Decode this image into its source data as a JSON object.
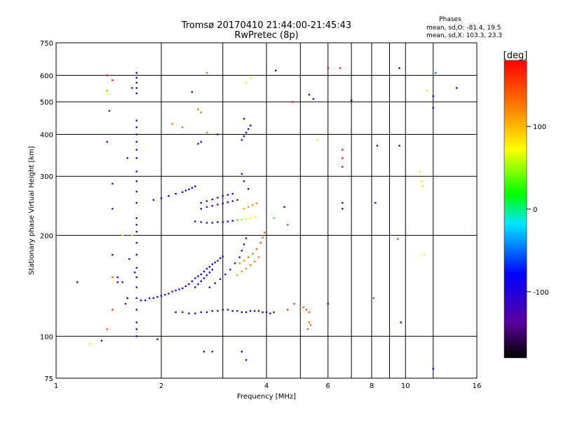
{
  "chart_data": {
    "type": "scatter",
    "title": "Tromsø 20170410 21:44:00-21:45:43",
    "subtitle": "RwPretec (8p)",
    "xlabel": "Frequency [MHz]",
    "ylabel": "Stationary phase Virtual Height [km]",
    "xscale": "log",
    "yscale": "log",
    "xlim": [
      1,
      16
    ],
    "ylim": [
      75,
      750
    ],
    "x_ticks": [
      1,
      2,
      4,
      6,
      8,
      10,
      16
    ],
    "y_ticks": [
      75,
      100,
      200,
      300,
      400,
      500,
      600,
      750
    ],
    "grid_x": [
      1,
      2,
      3,
      4,
      5,
      6,
      7,
      8,
      9,
      10,
      12
    ],
    "grid_y": [
      100,
      200,
      300,
      400,
      500,
      600
    ],
    "grid": true,
    "phases_box": {
      "title": "Phases",
      "line1": "mean, sd,O: -81.4, 19.5",
      "line2": "mean, sd,X: 103.3, 23.3"
    },
    "colorbar": {
      "label": "[deg]",
      "range": [
        -180,
        180
      ],
      "ticks": [
        100,
        0,
        -100
      ],
      "colormap": "rainbow"
    },
    "series": [
      {
        "color_label": "phase",
        "points": [
          [
            1.15,
            145,
            -110
          ],
          [
            1.25,
            95,
            60
          ],
          [
            1.35,
            97,
            -150
          ],
          [
            1.4,
            105,
            150
          ],
          [
            1.4,
            380,
            -130
          ],
          [
            1.4,
            600,
            170
          ],
          [
            1.4,
            540,
            30
          ],
          [
            1.42,
            470,
            -120
          ],
          [
            1.45,
            175,
            -150
          ],
          [
            1.45,
            150,
            140
          ],
          [
            1.45,
            120,
            160
          ],
          [
            1.45,
            285,
            -110
          ],
          [
            1.45,
            240,
            -120
          ],
          [
            1.5,
            150,
            -110
          ],
          [
            1.5,
            145,
            -115
          ],
          [
            1.55,
            145,
            -120
          ],
          [
            1.58,
            125,
            -110
          ],
          [
            1.6,
            130,
            -110
          ],
          [
            1.62,
            170,
            -110
          ],
          [
            1.65,
            200,
            60
          ],
          [
            1.68,
            155,
            -115
          ],
          [
            1.7,
            610,
            -110
          ],
          [
            1.7,
            590,
            -115
          ],
          [
            1.7,
            570,
            -120
          ],
          [
            1.7,
            550,
            -110
          ],
          [
            1.7,
            530,
            -115
          ],
          [
            1.7,
            440,
            -115
          ],
          [
            1.7,
            420,
            -110
          ],
          [
            1.7,
            400,
            -115
          ],
          [
            1.7,
            380,
            -110
          ],
          [
            1.7,
            360,
            -115
          ],
          [
            1.7,
            340,
            -110
          ],
          [
            1.7,
            310,
            -115
          ],
          [
            1.7,
            290,
            -110
          ],
          [
            1.7,
            270,
            -115
          ],
          [
            1.7,
            250,
            -110
          ],
          [
            1.7,
            225,
            -115
          ],
          [
            1.7,
            215,
            -110
          ],
          [
            1.7,
            205,
            -110
          ],
          [
            1.7,
            190,
            -115
          ],
          [
            1.7,
            175,
            -110
          ],
          [
            1.7,
            160,
            -115
          ],
          [
            1.7,
            150,
            -110
          ],
          [
            1.7,
            140,
            -115
          ],
          [
            1.7,
            130,
            -110
          ],
          [
            1.7,
            120,
            -115
          ],
          [
            1.7,
            110,
            -110
          ],
          [
            1.7,
            105,
            -115
          ],
          [
            1.7,
            100,
            -110
          ],
          [
            1.75,
            128,
            -110
          ],
          [
            1.8,
            128,
            -112
          ],
          [
            1.85,
            130,
            -110
          ],
          [
            1.9,
            130,
            -105
          ],
          [
            1.95,
            131,
            -108
          ],
          [
            2.0,
            132,
            -106
          ],
          [
            2.05,
            133,
            -104
          ],
          [
            2.1,
            134,
            -102
          ],
          [
            2.15,
            136,
            -100
          ],
          [
            2.2,
            137,
            -98
          ],
          [
            2.25,
            138,
            -98
          ],
          [
            2.3,
            139,
            -96
          ],
          [
            2.35,
            141,
            -95
          ],
          [
            2.4,
            143,
            -93
          ],
          [
            2.45,
            146,
            -92
          ],
          [
            2.5,
            149,
            -90
          ],
          [
            2.55,
            151,
            -88
          ],
          [
            2.6,
            153,
            -86
          ],
          [
            2.65,
            156,
            -85
          ],
          [
            2.7,
            159,
            -84
          ],
          [
            2.75,
            161,
            -82
          ],
          [
            2.8,
            164,
            -80
          ],
          [
            2.85,
            166,
            -78
          ],
          [
            2.9,
            168,
            -77
          ],
          [
            2.95,
            171,
            -76
          ],
          [
            3.0,
            173,
            -75
          ],
          [
            2.5,
            140,
            -95
          ],
          [
            2.55,
            143,
            -90
          ],
          [
            2.6,
            146,
            -88
          ],
          [
            2.65,
            149,
            -85
          ],
          [
            2.7,
            152,
            -82
          ],
          [
            2.75,
            155,
            -80
          ],
          [
            2.8,
            158,
            -78
          ],
          [
            2.75,
            140,
            -110
          ],
          [
            2.85,
            144,
            -110
          ],
          [
            2.95,
            148,
            -112
          ],
          [
            3.05,
            153,
            -112
          ],
          [
            3.15,
            158,
            -115
          ],
          [
            3.25,
            165,
            -115
          ],
          [
            3.35,
            172,
            -115
          ],
          [
            3.4,
            180,
            -115
          ],
          [
            3.45,
            188,
            -115
          ],
          [
            3.5,
            196,
            -115
          ],
          [
            1.9,
            255,
            -100
          ],
          [
            2.0,
            258,
            -100
          ],
          [
            2.1,
            262,
            -95
          ],
          [
            2.2,
            266,
            -95
          ],
          [
            2.3,
            269,
            -90
          ],
          [
            2.35,
            272,
            -90
          ],
          [
            2.4,
            274,
            -90
          ],
          [
            2.45,
            277,
            -88
          ],
          [
            2.5,
            280,
            -86
          ],
          [
            2.6,
            250,
            -110
          ],
          [
            2.7,
            253,
            -110
          ],
          [
            2.8,
            256,
            -112
          ],
          [
            2.9,
            259,
            -112
          ],
          [
            3.0,
            262,
            -112
          ],
          [
            3.1,
            264,
            -115
          ],
          [
            3.2,
            266,
            -115
          ],
          [
            2.6,
            240,
            -110
          ],
          [
            2.7,
            243,
            -112
          ],
          [
            2.8,
            245,
            -112
          ],
          [
            2.9,
            247,
            -115
          ],
          [
            3.0,
            249,
            -115
          ],
          [
            3.1,
            251,
            -115
          ],
          [
            3.2,
            253,
            -115
          ],
          [
            3.3,
            255,
            -115
          ],
          [
            2.5,
            220,
            -110
          ],
          [
            2.6,
            219,
            -112
          ],
          [
            2.7,
            218,
            -112
          ],
          [
            2.8,
            218,
            -112
          ],
          [
            2.9,
            219,
            -112
          ],
          [
            3.0,
            219,
            -110
          ],
          [
            3.1,
            220,
            -108
          ],
          [
            3.2,
            221,
            -105
          ],
          [
            3.3,
            222,
            30
          ],
          [
            3.4,
            223,
            50
          ],
          [
            3.5,
            224,
            60
          ],
          [
            3.6,
            225,
            70
          ],
          [
            3.7,
            227,
            75
          ],
          [
            3.45,
            240,
            110
          ],
          [
            3.55,
            243,
            115
          ],
          [
            3.65,
            246,
            118
          ],
          [
            3.75,
            249,
            120
          ],
          [
            3.35,
            165,
            120
          ],
          [
            3.45,
            168,
            125
          ],
          [
            3.55,
            172,
            128
          ],
          [
            3.65,
            176,
            130
          ],
          [
            3.75,
            182,
            135
          ],
          [
            3.85,
            190,
            140
          ],
          [
            3.9,
            197,
            140
          ],
          [
            3.95,
            204,
            142
          ],
          [
            3.3,
            152,
            115
          ],
          [
            3.4,
            156,
            118
          ],
          [
            3.5,
            159,
            120
          ],
          [
            3.6,
            163,
            122
          ],
          [
            3.7,
            167,
            124
          ],
          [
            3.8,
            172,
            126
          ],
          [
            2.2,
            118,
            -110
          ],
          [
            2.3,
            118,
            -112
          ],
          [
            2.4,
            117,
            -112
          ],
          [
            2.5,
            117,
            -112
          ],
          [
            2.6,
            118,
            -115
          ],
          [
            2.7,
            118,
            -115
          ],
          [
            2.8,
            119,
            -115
          ],
          [
            2.9,
            119,
            -115
          ],
          [
            3.0,
            120,
            -115
          ],
          [
            3.1,
            120,
            -115
          ],
          [
            3.2,
            119,
            -112
          ],
          [
            3.3,
            119,
            -112
          ],
          [
            3.4,
            118,
            -112
          ],
          [
            3.5,
            118,
            -110
          ],
          [
            3.6,
            119,
            -110
          ],
          [
            3.7,
            119,
            -110
          ],
          [
            3.8,
            119,
            -110
          ],
          [
            3.9,
            118,
            -108
          ],
          [
            4.0,
            118,
            -110
          ],
          [
            4.1,
            117,
            -108
          ],
          [
            4.2,
            118,
            -108
          ],
          [
            3.4,
            385,
            -110
          ],
          [
            3.45,
            395,
            -110
          ],
          [
            3.5,
            405,
            -110
          ],
          [
            3.55,
            415,
            -112
          ],
          [
            3.6,
            425,
            -112
          ],
          [
            3.45,
            445,
            -110
          ],
          [
            3.5,
            570,
            60
          ],
          [
            3.6,
            590,
            70
          ],
          [
            4.25,
            620,
            -110
          ],
          [
            3.55,
            275,
            -110
          ],
          [
            3.45,
            290,
            -110
          ],
          [
            3.4,
            305,
            -110
          ],
          [
            4.6,
            120,
            150
          ],
          [
            4.8,
            125,
            150
          ],
          [
            5.0,
            120,
            130
          ],
          [
            5.1,
            122,
            140
          ],
          [
            5.2,
            120,
            145
          ],
          [
            5.3,
            118,
            145
          ],
          [
            4.5,
            243,
            -150
          ],
          [
            4.2,
            225,
            5
          ],
          [
            4.6,
            215,
            150
          ],
          [
            4.75,
            500,
            170
          ],
          [
            5.3,
            525,
            -100
          ],
          [
            5.45,
            510,
            -110
          ],
          [
            5.6,
            385,
            60
          ],
          [
            5.25,
            105,
            140
          ],
          [
            5.35,
            108,
            140
          ],
          [
            5.3,
            110,
            130
          ],
          [
            6.0,
            630,
            170
          ],
          [
            6.5,
            630,
            170
          ],
          [
            6.6,
            360,
            170
          ],
          [
            6.6,
            340,
            170
          ],
          [
            6.6,
            320,
            170
          ],
          [
            6.6,
            250,
            -150
          ],
          [
            6.6,
            240,
            -160
          ],
          [
            6.0,
            125,
            -110
          ],
          [
            7.0,
            505,
            -150
          ],
          [
            8.1,
            130,
            160
          ],
          [
            8.2,
            250,
            -120
          ],
          [
            8.3,
            370,
            -120
          ],
          [
            9.6,
            370,
            -150
          ],
          [
            9.5,
            195,
            140
          ],
          [
            9.6,
            630,
            -110
          ],
          [
            9.7,
            110,
            -110
          ],
          [
            11.0,
            310,
            60
          ],
          [
            11.1,
            290,
            60
          ],
          [
            11.2,
            280,
            60
          ],
          [
            11.5,
            540,
            60
          ],
          [
            11.3,
            175,
            70
          ],
          [
            12.0,
            520,
            -110
          ],
          [
            12.0,
            480,
            -110
          ],
          [
            12.2,
            610,
            -50
          ],
          [
            14.0,
            550,
            -110
          ],
          [
            12.0,
            80,
            -100
          ],
          [
            1.55,
            200,
            60
          ],
          [
            1.6,
            340,
            -110
          ],
          [
            1.45,
            580,
            170
          ],
          [
            1.4,
            530,
            70
          ],
          [
            1.65,
            550,
            -110
          ],
          [
            1.95,
            98,
            -110
          ],
          [
            2.15,
            430,
            130
          ],
          [
            2.3,
            420,
            130
          ],
          [
            2.55,
            475,
            130
          ],
          [
            2.6,
            465,
            130
          ],
          [
            2.7,
            610,
            130
          ],
          [
            2.55,
            375,
            -110
          ],
          [
            2.6,
            380,
            -105
          ],
          [
            2.45,
            535,
            -110
          ],
          [
            2.7,
            405,
            130
          ],
          [
            2.9,
            400,
            -120
          ],
          [
            2.65,
            90,
            -110
          ],
          [
            2.8,
            90,
            -120
          ],
          [
            3.4,
            90,
            -100
          ],
          [
            3.5,
            85,
            -100
          ]
        ]
      }
    ]
  }
}
